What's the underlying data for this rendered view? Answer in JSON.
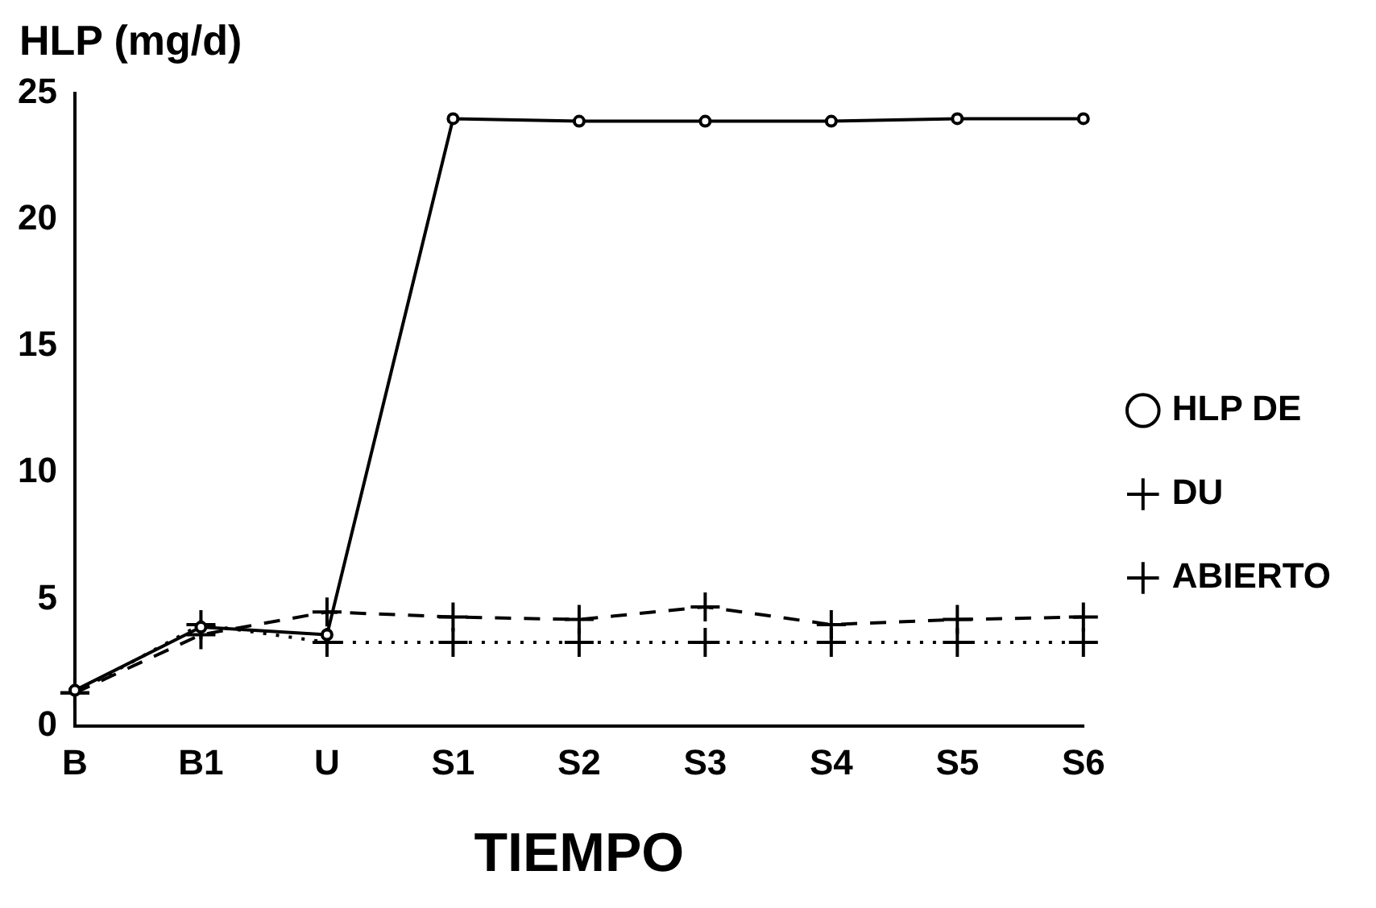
{
  "chart_data": {
    "type": "line",
    "ylabel": "HLP (mg/d)",
    "xlabel": "TIEMPO",
    "categories": [
      "B",
      "B1",
      "U",
      "S1",
      "S2",
      "S3",
      "S4",
      "S5",
      "S6"
    ],
    "series": [
      {
        "name": "HLP DE",
        "color": "#000000",
        "marker": "circle",
        "line_style": "solid",
        "values": [
          1.4,
          3.9,
          3.6,
          24.0,
          23.9,
          23.9,
          23.9,
          24.0,
          24.0
        ]
      },
      {
        "name": "DU",
        "color": "#000000",
        "marker": "cross",
        "line_style": "dotted",
        "values": [
          1.3,
          4.0,
          3.3,
          3.3,
          3.3,
          3.3,
          3.3,
          3.3,
          3.3
        ]
      },
      {
        "name": "ABIERTO",
        "color": "#000000",
        "marker": "cross",
        "line_style": "dashed",
        "values": [
          1.3,
          3.6,
          4.5,
          4.3,
          4.2,
          4.7,
          4.0,
          4.2,
          4.3
        ]
      }
    ],
    "ylim": [
      0,
      25
    ],
    "yticks": [
      0,
      5,
      10,
      15,
      20,
      25
    ],
    "grid": false,
    "legend": "right"
  }
}
